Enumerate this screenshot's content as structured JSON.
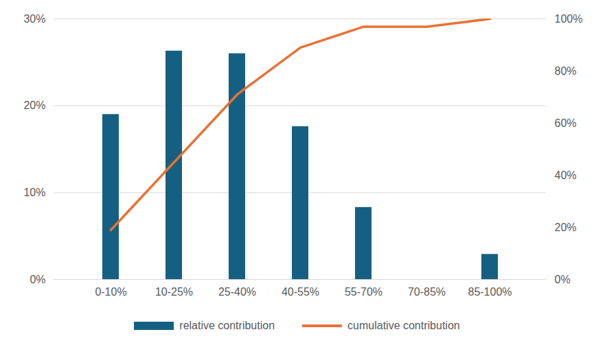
{
  "chart_data": {
    "type": "bar",
    "categories": [
      "0-10%",
      "10-25%",
      "25-40%",
      "40-55%",
      "55-70%",
      "70-85%",
      "85-100%"
    ],
    "series": [
      {
        "name": "relative contribution",
        "type": "bar",
        "color": "#156082",
        "values": [
          19,
          26.3,
          26,
          17.6,
          8.3,
          0,
          2.9
        ]
      },
      {
        "name": "cumulative contribution",
        "type": "line",
        "color": "#e97132",
        "axis": "y2",
        "values": [
          19,
          45,
          71,
          89,
          97,
          97,
          100
        ]
      }
    ],
    "ylim": [
      0,
      30
    ],
    "yticks": [
      {
        "value": 0,
        "label": "0%"
      },
      {
        "value": 10,
        "label": "10%"
      },
      {
        "value": 20,
        "label": "20%"
      },
      {
        "value": 30,
        "label": "30%"
      }
    ],
    "y2lim": [
      0,
      100
    ],
    "y2ticks": [
      {
        "value": 0,
        "label": "0%"
      },
      {
        "value": 20,
        "label": "20%"
      },
      {
        "value": 40,
        "label": "40%"
      },
      {
        "value": 60,
        "label": "60%"
      },
      {
        "value": 80,
        "label": "80%"
      },
      {
        "value": 100,
        "label": "100%"
      }
    ],
    "grid": true,
    "legend": "bottom"
  }
}
